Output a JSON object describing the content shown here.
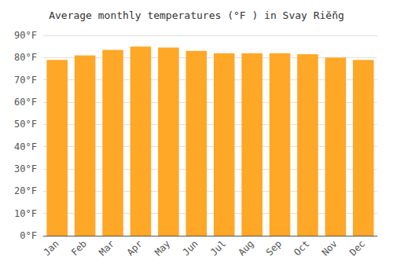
{
  "chart_data": {
    "type": "bar",
    "title": "Average monthly temperatures (°F ) in Svay Riĕ̆ng",
    "categories": [
      "Jan",
      "Feb",
      "Mar",
      "Apr",
      "May",
      "Jun",
      "Jul",
      "Aug",
      "Sep",
      "Oct",
      "Nov",
      "Dec"
    ],
    "values": [
      79,
      81,
      83.5,
      85,
      84.5,
      83,
      82,
      82,
      82,
      81.5,
      80,
      79
    ],
    "color": "#FFA726",
    "ylim": [
      0,
      90
    ],
    "yticks": [
      {
        "value": 0,
        "label": "0°F"
      },
      {
        "value": 10,
        "label": "10°F"
      },
      {
        "value": 20,
        "label": "20°F"
      },
      {
        "value": 30,
        "label": "30°F"
      },
      {
        "value": 40,
        "label": "40°F"
      },
      {
        "value": 50,
        "label": "50°F"
      },
      {
        "value": 60,
        "label": "60°F"
      },
      {
        "value": 70,
        "label": "70°F"
      },
      {
        "value": 80,
        "label": "80°F"
      },
      {
        "value": 90,
        "label": "90°F"
      }
    ],
    "grid": true
  }
}
